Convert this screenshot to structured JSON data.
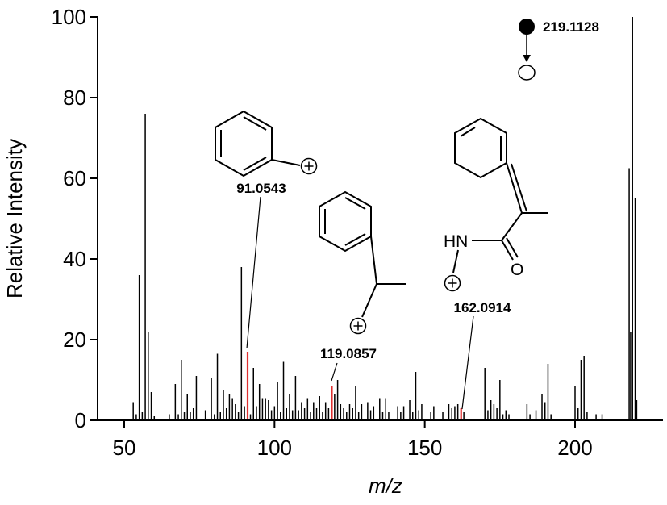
{
  "chart_data": {
    "type": "bar",
    "xlabel": "m/z",
    "ylabel": "Relative Intensity",
    "xlim": [
      45,
      227
    ],
    "ylim": [
      0,
      100
    ],
    "xticks": [
      "50",
      "100",
      "150",
      "200"
    ],
    "yticks": [
      "0",
      "20",
      "40",
      "60",
      "80",
      "100"
    ],
    "highlight_color": "#e03030",
    "bar_color": "#000000",
    "peaks": [
      {
        "mz": 53.0,
        "intensity": 4.5
      },
      {
        "mz": 54.0,
        "intensity": 1.5
      },
      {
        "mz": 55.0,
        "intensity": 36.0
      },
      {
        "mz": 56.0,
        "intensity": 2.0
      },
      {
        "mz": 57.0,
        "intensity": 76.0
      },
      {
        "mz": 58.0,
        "intensity": 22.0
      },
      {
        "mz": 59.0,
        "intensity": 7.0
      },
      {
        "mz": 60.0,
        "intensity": 1.0
      },
      {
        "mz": 65.0,
        "intensity": 1.5
      },
      {
        "mz": 67.0,
        "intensity": 9.0
      },
      {
        "mz": 68.0,
        "intensity": 1.5
      },
      {
        "mz": 69.0,
        "intensity": 15.0
      },
      {
        "mz": 70.0,
        "intensity": 2.0
      },
      {
        "mz": 71.0,
        "intensity": 6.5
      },
      {
        "mz": 72.0,
        "intensity": 2.0
      },
      {
        "mz": 73.0,
        "intensity": 3.0
      },
      {
        "mz": 74.0,
        "intensity": 11.0
      },
      {
        "mz": 77.0,
        "intensity": 2.5
      },
      {
        "mz": 79.0,
        "intensity": 10.5
      },
      {
        "mz": 80.0,
        "intensity": 1.5
      },
      {
        "mz": 81.0,
        "intensity": 16.5
      },
      {
        "mz": 82.0,
        "intensity": 2.0
      },
      {
        "mz": 83.0,
        "intensity": 7.5
      },
      {
        "mz": 84.0,
        "intensity": 3.0
      },
      {
        "mz": 85.0,
        "intensity": 6.5
      },
      {
        "mz": 86.0,
        "intensity": 5.5
      },
      {
        "mz": 87.0,
        "intensity": 4.0
      },
      {
        "mz": 88.0,
        "intensity": 2.0
      },
      {
        "mz": 89.0,
        "intensity": 38.0
      },
      {
        "mz": 90.0,
        "intensity": 3.5
      },
      {
        "mz": 91.0543,
        "intensity": 17.0,
        "highlight": true
      },
      {
        "mz": 92.0,
        "intensity": 1.5
      },
      {
        "mz": 93.0,
        "intensity": 13.0
      },
      {
        "mz": 94.0,
        "intensity": 3.5
      },
      {
        "mz": 95.0,
        "intensity": 9.0
      },
      {
        "mz": 96.0,
        "intensity": 5.5
      },
      {
        "mz": 97.0,
        "intensity": 5.5
      },
      {
        "mz": 98.0,
        "intensity": 5.0
      },
      {
        "mz": 99.0,
        "intensity": 2.5
      },
      {
        "mz": 100.0,
        "intensity": 3.5
      },
      {
        "mz": 101.0,
        "intensity": 9.5
      },
      {
        "mz": 102.0,
        "intensity": 2.0
      },
      {
        "mz": 103.0,
        "intensity": 14.5
      },
      {
        "mz": 104.0,
        "intensity": 3.0
      },
      {
        "mz": 105.0,
        "intensity": 6.5
      },
      {
        "mz": 106.0,
        "intensity": 2.5
      },
      {
        "mz": 107.0,
        "intensity": 11.0
      },
      {
        "mz": 108.0,
        "intensity": 2.5
      },
      {
        "mz": 109.0,
        "intensity": 4.5
      },
      {
        "mz": 110.0,
        "intensity": 3.0
      },
      {
        "mz": 111.0,
        "intensity": 5.5
      },
      {
        "mz": 112.0,
        "intensity": 2.0
      },
      {
        "mz": 113.0,
        "intensity": 4.5
      },
      {
        "mz": 114.0,
        "intensity": 3.0
      },
      {
        "mz": 115.0,
        "intensity": 6.0
      },
      {
        "mz": 116.0,
        "intensity": 2.0
      },
      {
        "mz": 117.0,
        "intensity": 4.5
      },
      {
        "mz": 118.0,
        "intensity": 3.0
      },
      {
        "mz": 119.0857,
        "intensity": 8.5,
        "highlight": true
      },
      {
        "mz": 120.0,
        "intensity": 6.5
      },
      {
        "mz": 121.0,
        "intensity": 10.0
      },
      {
        "mz": 122.0,
        "intensity": 4.0
      },
      {
        "mz": 123.0,
        "intensity": 3.0
      },
      {
        "mz": 124.0,
        "intensity": 2.0
      },
      {
        "mz": 125.0,
        "intensity": 4.0
      },
      {
        "mz": 126.0,
        "intensity": 3.0
      },
      {
        "mz": 127.0,
        "intensity": 8.5
      },
      {
        "mz": 128.0,
        "intensity": 2.0
      },
      {
        "mz": 129.0,
        "intensity": 4.0
      },
      {
        "mz": 131.0,
        "intensity": 4.5
      },
      {
        "mz": 132.0,
        "intensity": 2.5
      },
      {
        "mz": 133.0,
        "intensity": 3.5
      },
      {
        "mz": 135.0,
        "intensity": 5.5
      },
      {
        "mz": 136.0,
        "intensity": 2.0
      },
      {
        "mz": 137.0,
        "intensity": 5.5
      },
      {
        "mz": 138.0,
        "intensity": 2.0
      },
      {
        "mz": 141.0,
        "intensity": 3.5
      },
      {
        "mz": 142.0,
        "intensity": 2.0
      },
      {
        "mz": 143.0,
        "intensity": 3.5
      },
      {
        "mz": 145.0,
        "intensity": 5.0
      },
      {
        "mz": 146.0,
        "intensity": 2.0
      },
      {
        "mz": 147.0,
        "intensity": 12.0
      },
      {
        "mz": 148.0,
        "intensity": 2.5
      },
      {
        "mz": 149.0,
        "intensity": 4.0
      },
      {
        "mz": 152.0,
        "intensity": 2.0
      },
      {
        "mz": 153.0,
        "intensity": 3.5
      },
      {
        "mz": 156.0,
        "intensity": 2.0
      },
      {
        "mz": 158.0,
        "intensity": 4.0
      },
      {
        "mz": 159.0,
        "intensity": 3.0
      },
      {
        "mz": 160.0,
        "intensity": 3.5
      },
      {
        "mz": 161.0,
        "intensity": 4.0
      },
      {
        "mz": 162.0914,
        "intensity": 3.0,
        "highlight": true
      },
      {
        "mz": 163.0,
        "intensity": 2.0
      },
      {
        "mz": 170.0,
        "intensity": 13.0
      },
      {
        "mz": 171.0,
        "intensity": 2.5
      },
      {
        "mz": 172.0,
        "intensity": 5.0
      },
      {
        "mz": 173.0,
        "intensity": 4.0
      },
      {
        "mz": 174.0,
        "intensity": 3.0
      },
      {
        "mz": 175.0,
        "intensity": 10.0
      },
      {
        "mz": 176.0,
        "intensity": 1.5
      },
      {
        "mz": 177.0,
        "intensity": 2.5
      },
      {
        "mz": 178.0,
        "intensity": 1.5
      },
      {
        "mz": 184.0,
        "intensity": 4.0
      },
      {
        "mz": 185.0,
        "intensity": 1.5
      },
      {
        "mz": 187.0,
        "intensity": 2.5
      },
      {
        "mz": 189.0,
        "intensity": 6.5
      },
      {
        "mz": 190.0,
        "intensity": 4.5
      },
      {
        "mz": 191.0,
        "intensity": 14.0
      },
      {
        "mz": 192.0,
        "intensity": 1.5
      },
      {
        "mz": 200.0,
        "intensity": 8.5
      },
      {
        "mz": 201.0,
        "intensity": 3.0
      },
      {
        "mz": 202.0,
        "intensity": 15.0
      },
      {
        "mz": 203.0,
        "intensity": 16.0
      },
      {
        "mz": 204.0,
        "intensity": 2.0
      },
      {
        "mz": 207.0,
        "intensity": 1.5
      },
      {
        "mz": 209.0,
        "intensity": 1.5
      },
      {
        "mz": 218.0,
        "intensity": 62.5
      },
      {
        "mz": 218.5,
        "intensity": 22.0
      },
      {
        "mz": 219.1128,
        "intensity": 100.0
      },
      {
        "mz": 220.0,
        "intensity": 55.0
      },
      {
        "mz": 220.5,
        "intensity": 5.0
      }
    ],
    "annotations": [
      {
        "text": "91.0543",
        "mz": 91.0543
      },
      {
        "text": "119.0857",
        "mz": 119.0857
      },
      {
        "text": "162.0914",
        "mz": 162.0914
      },
      {
        "text": "219.1128",
        "mz": 219.1128
      }
    ],
    "structure_atoms": {
      "nh": "HN",
      "o": "O"
    }
  }
}
